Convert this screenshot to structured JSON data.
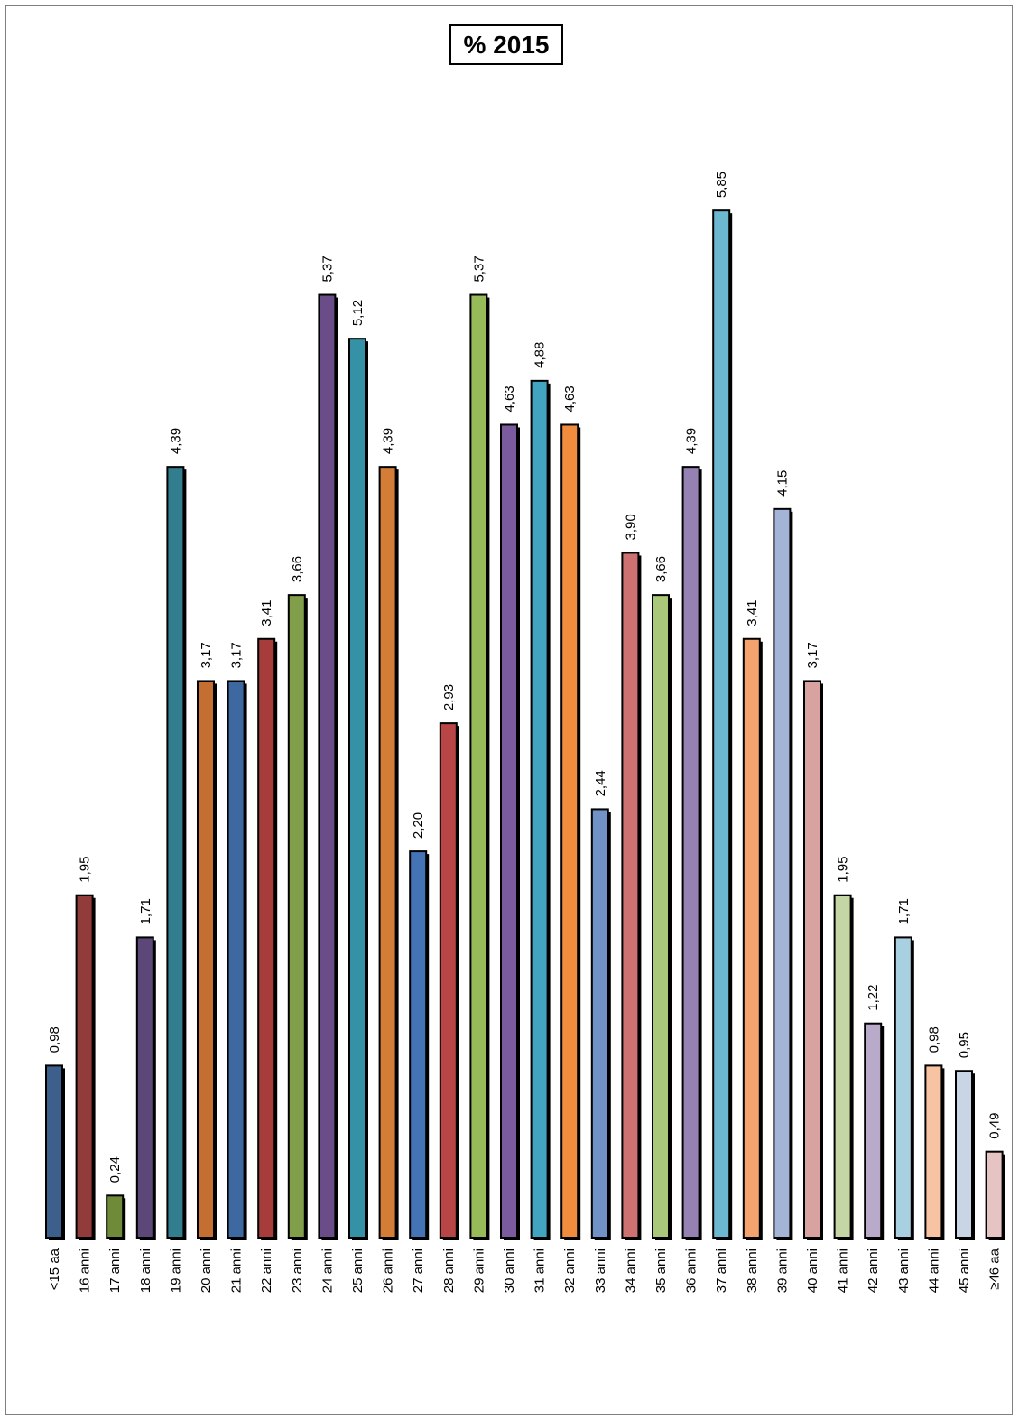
{
  "chart_data": {
    "type": "bar",
    "title": "% 2015",
    "xlabel": "",
    "ylabel": "",
    "ylim": [
      0,
      6.2
    ],
    "grid": false,
    "legend": "none",
    "categories": [
      "<15 aa",
      "16 anni",
      "17 anni",
      "18 anni",
      "19 anni",
      "20 anni",
      "21 anni",
      "22 anni",
      "23 anni",
      "24 anni",
      "25 anni",
      "26 anni",
      "27 anni",
      "28 anni",
      "29 anni",
      "30 anni",
      "31 anni",
      "32 anni",
      "33 anni",
      "34 anni",
      "35 anni",
      "36 anni",
      "37 anni",
      "38 anni",
      "39 anni",
      "40 anni",
      "41 anni",
      "42 anni",
      "43 anni",
      "44 anni",
      "45 anni",
      "≥46 aa"
    ],
    "values": [
      0.98,
      1.95,
      0.24,
      1.71,
      4.39,
      3.17,
      3.17,
      3.41,
      3.66,
      5.37,
      5.12,
      4.39,
      2.2,
      2.93,
      5.37,
      4.63,
      4.88,
      4.63,
      2.44,
      3.9,
      3.66,
      4.39,
      5.85,
      3.41,
      4.15,
      3.17,
      1.95,
      1.22,
      1.71,
      0.98,
      0.95,
      0.49
    ],
    "value_labels": [
      "0,98",
      "1,95",
      "0,24",
      "1,71",
      "4,39",
      "3,17",
      "3,17",
      "3,41",
      "3,66",
      "5,37",
      "5,12",
      "4,39",
      "2,20",
      "2,93",
      "5,37",
      "4,63",
      "4,88",
      "4,63",
      "2,44",
      "3,90",
      "3,66",
      "4,39",
      "5,85",
      "3,41",
      "4,15",
      "3,17",
      "1,95",
      "1,22",
      "1,71",
      "0,98",
      "0,95",
      "0,49"
    ],
    "colors": [
      "#3c5f8c",
      "#923b3b",
      "#6f8b3a",
      "#5b4778",
      "#327d8e",
      "#c46f31",
      "#3d68a0",
      "#a73d3b",
      "#819e4a",
      "#6a4d88",
      "#3591a6",
      "#d47d36",
      "#4574b6",
      "#b94646",
      "#98bb59",
      "#7b5a9e",
      "#42a4c1",
      "#f08c3d",
      "#7192c6",
      "#cd7270",
      "#a9c87a",
      "#9582b3",
      "#6bb8d0",
      "#f4a36e",
      "#a4b4d6",
      "#d8a2a0",
      "#c3d6a4",
      "#b8aac8",
      "#a8d0e0",
      "#f8c3a2",
      "#c9d4e5",
      "#e6c4c4"
    ]
  }
}
